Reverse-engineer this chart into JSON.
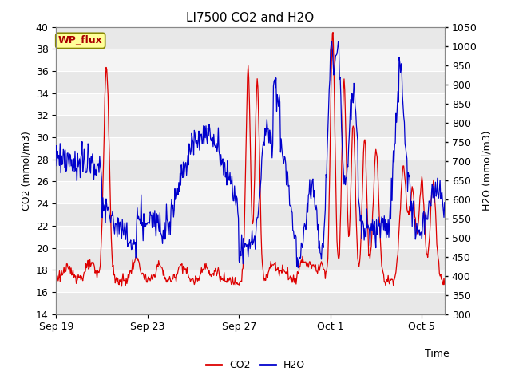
{
  "title": "LI7500 CO2 and H2O",
  "xlabel": "Time",
  "ylabel_left": "CO2 (mmol/m3)",
  "ylabel_right": "H2O (mmol/m3)",
  "annotation": "WP_flux",
  "annotation_color": "#aa0000",
  "annotation_bg": "#ffff99",
  "annotation_border": "#888800",
  "co2_color": "#dd0000",
  "h2o_color": "#0000cc",
  "ylim_left": [
    14,
    40
  ],
  "ylim_right": [
    300,
    1050
  ],
  "yticks_left": [
    14,
    16,
    18,
    20,
    22,
    24,
    26,
    28,
    30,
    32,
    34,
    36,
    38,
    40
  ],
  "yticks_right": [
    300,
    350,
    400,
    450,
    500,
    550,
    600,
    650,
    700,
    750,
    800,
    850,
    900,
    950,
    1000,
    1050
  ],
  "xtick_labels": [
    "Sep 19",
    "Sep 23",
    "Sep 27",
    "Oct 1",
    "Oct 5"
  ],
  "xtick_positions": [
    0,
    4,
    8,
    12,
    16
  ],
  "xlim": [
    0,
    17
  ],
  "n_points": 600,
  "bg_color": "#ffffff",
  "band_color_dark": "#e8e8e8",
  "band_color_light": "#f4f4f4",
  "title_fontsize": 11,
  "axis_fontsize": 9,
  "tick_fontsize": 9,
  "legend_fontsize": 9
}
